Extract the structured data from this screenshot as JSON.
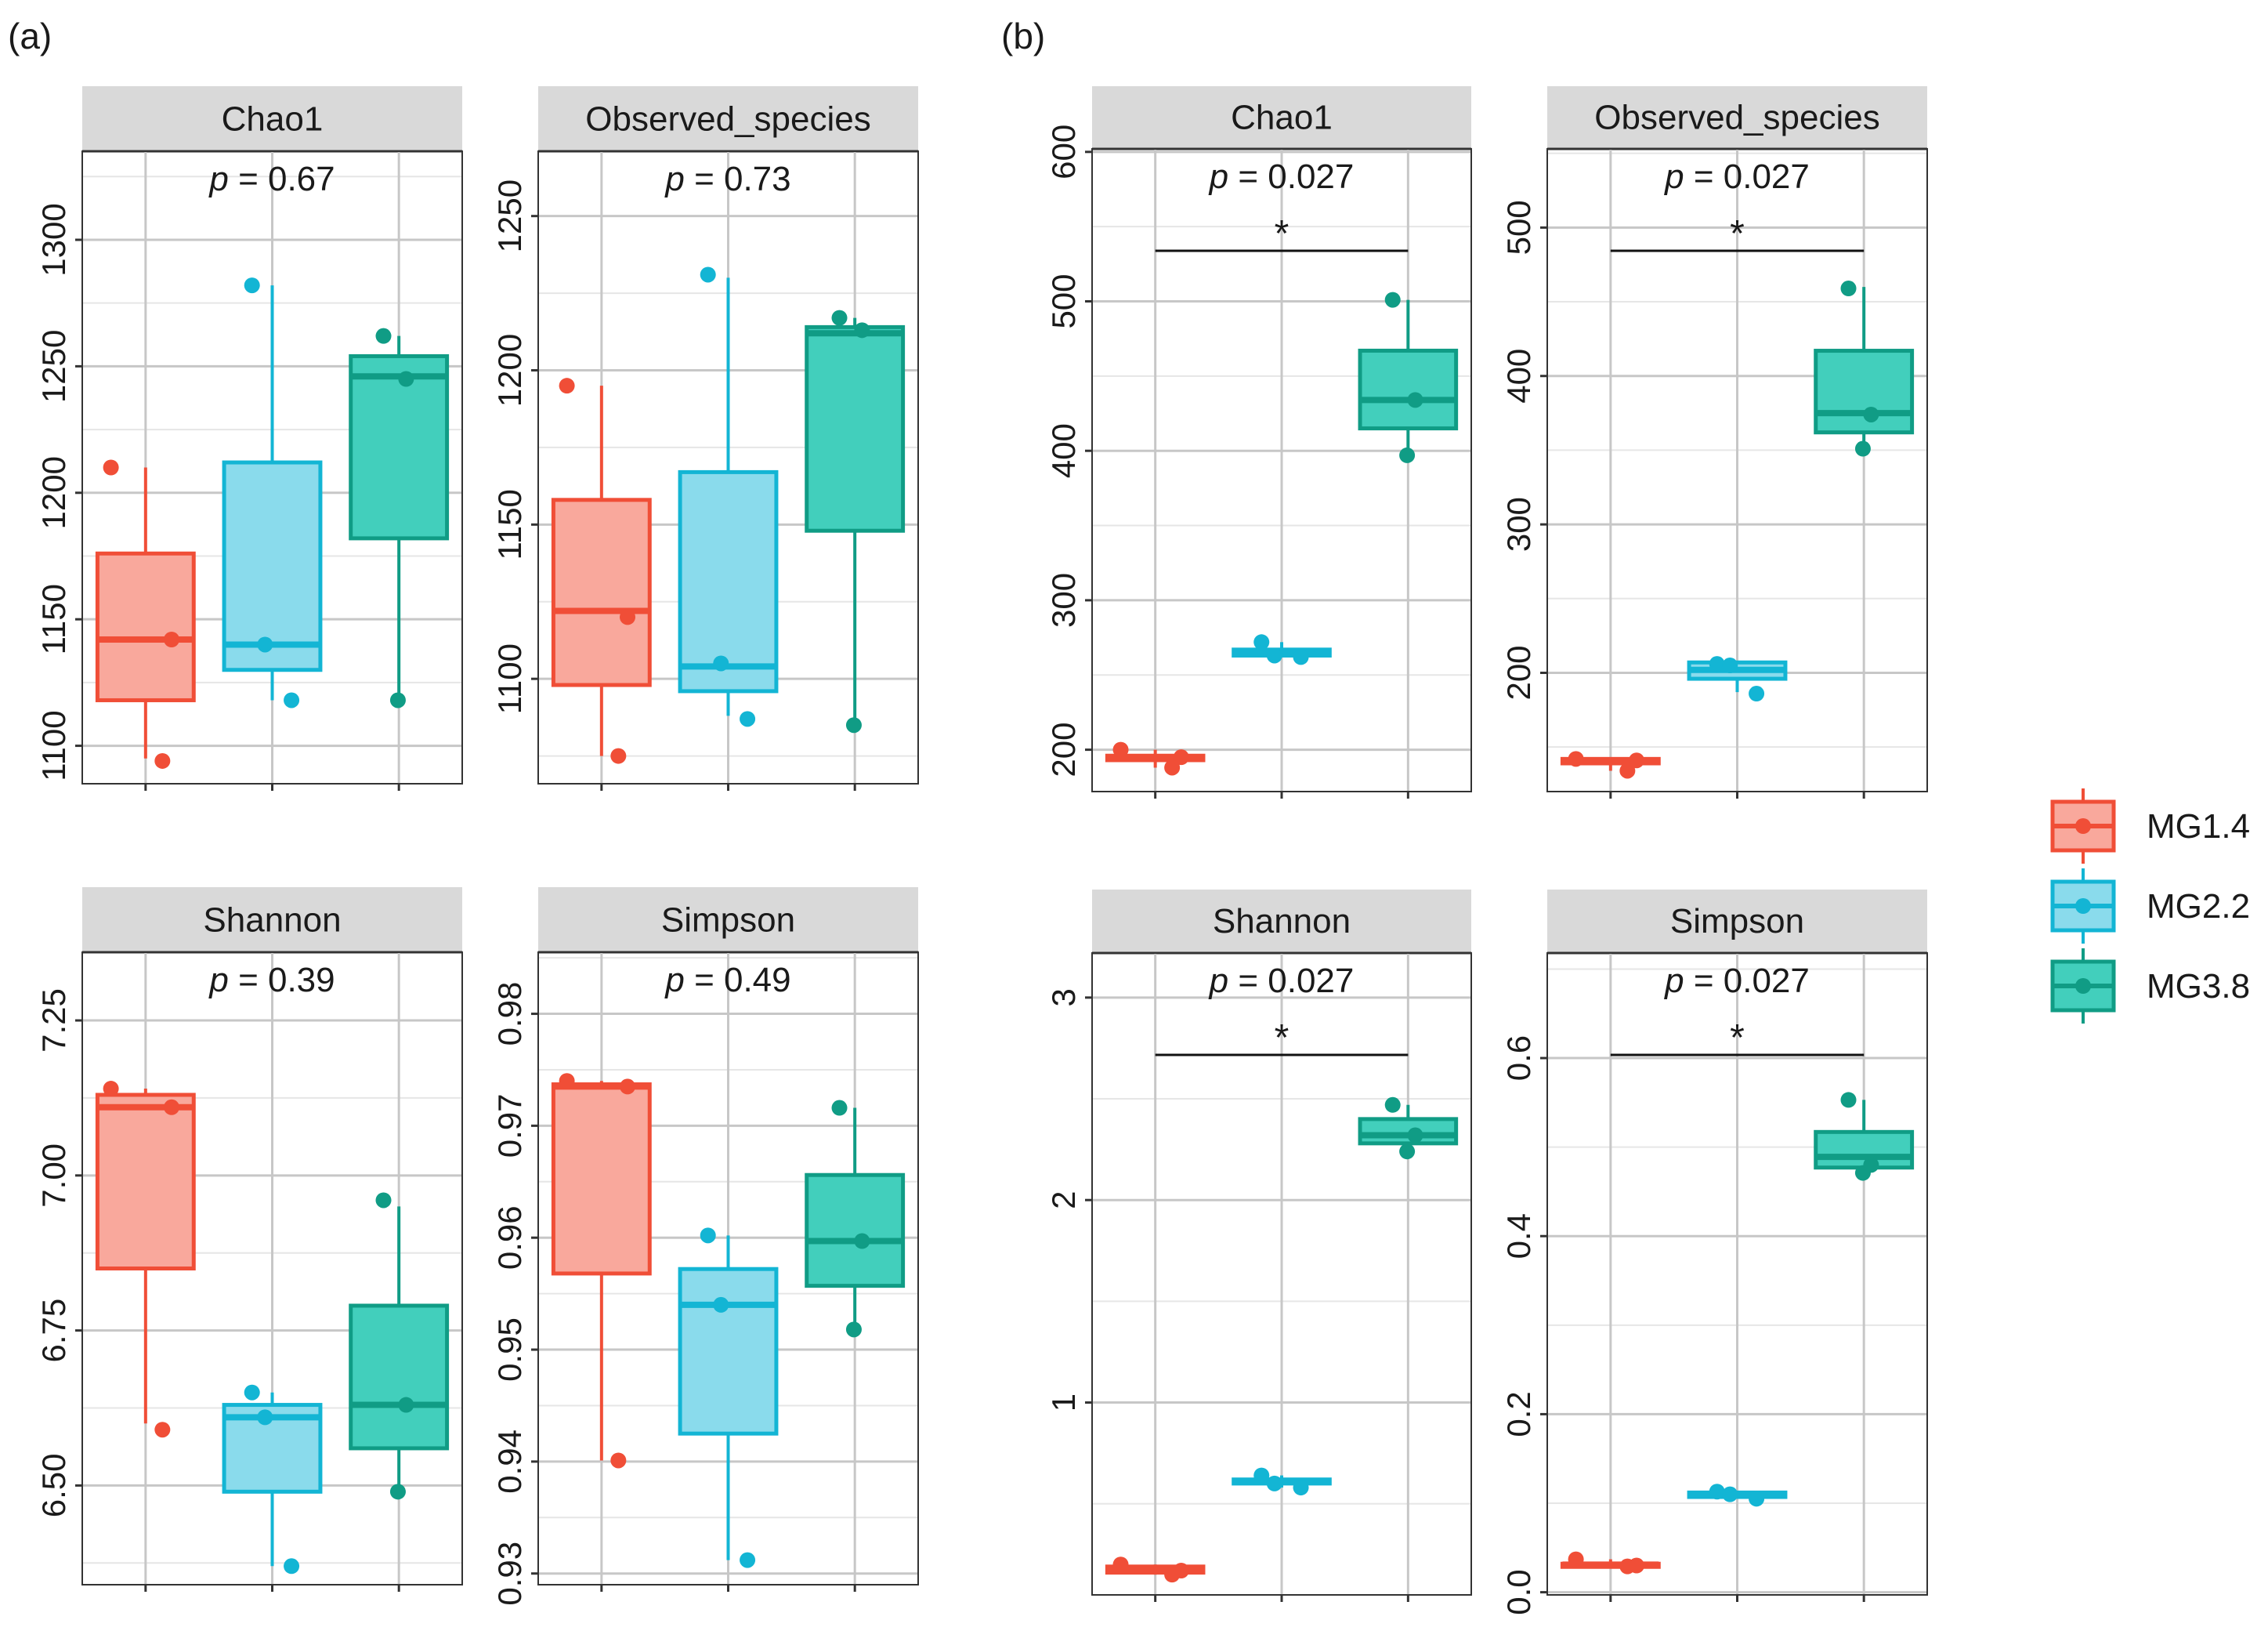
{
  "colors": {
    "MG1.4": "#F04E37",
    "MG2.2": "#13B5D4",
    "MG3.8": "#109C85",
    "MG1.4_fill": "#F9A89C",
    "MG2.2_fill": "#8ADBEC",
    "MG3.8_fill": "#42CFBC",
    "strip_bg": "#D9D9D9",
    "grid_major": "#C7C7C7",
    "grid_minor": "#E6E6E6",
    "text": "#1A1A1A"
  },
  "labels": {
    "a": "(a)",
    "b": "(b)"
  },
  "legend": {
    "items": [
      {
        "name": "MG1.4"
      },
      {
        "name": "MG2.2"
      },
      {
        "name": "MG3.8"
      }
    ]
  },
  "chart_data": [
    {
      "type": "box",
      "panel": "a",
      "title": "Chao1",
      "p_label": "p",
      "p_value": "= 0.67",
      "significance": "",
      "ylim": [
        1085,
        1335
      ],
      "yticks": [
        1100,
        1150,
        1200,
        1250,
        1300
      ],
      "ytick_labels": [
        "1100",
        "1150",
        "1200",
        "1250",
        "1300"
      ],
      "groups": [
        {
          "name": "MG1.4",
          "q1": 1118,
          "median": 1142,
          "q3": 1176,
          "whisker_low": 1095,
          "whisker_high": 1210,
          "points": [
            1210,
            1142,
            1094
          ]
        },
        {
          "name": "MG2.2",
          "q1": 1130,
          "median": 1140,
          "q3": 1212,
          "whisker_low": 1118,
          "whisker_high": 1282,
          "points": [
            1282,
            1140,
            1118
          ]
        },
        {
          "name": "MG3.8",
          "q1": 1182,
          "median": 1246,
          "q3": 1254,
          "whisker_low": 1118,
          "whisker_high": 1262,
          "points": [
            1262,
            1245,
            1118
          ]
        }
      ]
    },
    {
      "type": "box",
      "panel": "a",
      "title": "Observed_species",
      "p_label": "p",
      "p_value": "= 0.73",
      "significance": "",
      "ylim": [
        1066,
        1271
      ],
      "yticks": [
        1100,
        1150,
        1200,
        1250
      ],
      "ytick_labels": [
        "1100",
        "1150",
        "1200",
        "1250"
      ],
      "groups": [
        {
          "name": "MG1.4",
          "q1": 1098,
          "median": 1122,
          "q3": 1158,
          "whisker_low": 1075,
          "whisker_high": 1195,
          "points": [
            1195,
            1120,
            1075
          ]
        },
        {
          "name": "MG2.2",
          "q1": 1096,
          "median": 1104,
          "q3": 1167,
          "whisker_low": 1088,
          "whisker_high": 1230,
          "points": [
            1231,
            1105,
            1087
          ]
        },
        {
          "name": "MG3.8",
          "q1": 1148,
          "median": 1212,
          "q3": 1214,
          "whisker_low": 1084,
          "whisker_high": 1217,
          "points": [
            1217,
            1213,
            1085
          ]
        }
      ]
    },
    {
      "type": "box",
      "panel": "a",
      "title": "Shannon",
      "p_label": "p",
      "p_value": "= 0.39",
      "significance": "",
      "ylim": [
        6.34,
        7.36
      ],
      "yticks": [
        6.5,
        6.75,
        7.0,
        7.25
      ],
      "ytick_labels": [
        "6.50",
        "6.75",
        "7.00",
        "7.25"
      ],
      "groups": [
        {
          "name": "MG1.4",
          "q1": 6.85,
          "median": 7.11,
          "q3": 7.13,
          "whisker_low": 6.6,
          "whisker_high": 7.14,
          "points": [
            7.14,
            7.11,
            6.59
          ]
        },
        {
          "name": "MG2.2",
          "q1": 6.49,
          "median": 6.61,
          "q3": 6.63,
          "whisker_low": 6.37,
          "whisker_high": 6.65,
          "points": [
            6.65,
            6.61,
            6.37
          ]
        },
        {
          "name": "MG3.8",
          "q1": 6.56,
          "median": 6.63,
          "q3": 6.79,
          "whisker_low": 6.49,
          "whisker_high": 6.95,
          "points": [
            6.96,
            6.63,
            6.49
          ]
        }
      ]
    },
    {
      "type": "box",
      "panel": "a",
      "title": "Simpson",
      "p_label": "p",
      "p_value": "= 0.49",
      "significance": "",
      "ylim": [
        0.929,
        0.9855
      ],
      "yticks": [
        0.93,
        0.94,
        0.95,
        0.96,
        0.97,
        0.98
      ],
      "ytick_labels": [
        "0.93",
        "0.94",
        "0.95",
        "0.96",
        "0.97",
        "0.98"
      ],
      "groups": [
        {
          "name": "MG1.4",
          "q1": 0.9568,
          "median": 0.9735,
          "q3": 0.9737,
          "whisker_low": 0.9401,
          "whisker_high": 0.974,
          "points": [
            0.974,
            0.9735,
            0.9401
          ]
        },
        {
          "name": "MG2.2",
          "q1": 0.9425,
          "median": 0.954,
          "q3": 0.9572,
          "whisker_low": 0.9312,
          "whisker_high": 0.9602,
          "points": [
            0.9602,
            0.954,
            0.9312
          ]
        },
        {
          "name": "MG3.8",
          "q1": 0.9557,
          "median": 0.9597,
          "q3": 0.9656,
          "whisker_low": 0.9518,
          "whisker_high": 0.9716,
          "points": [
            0.9716,
            0.9597,
            0.9518
          ]
        }
      ]
    },
    {
      "type": "box",
      "panel": "b",
      "title": "Chao1",
      "p_label": "p",
      "p_value": "= 0.027",
      "significance": "*",
      "ylim": [
        172,
        602
      ],
      "yticks": [
        200,
        300,
        400,
        500,
        600
      ],
      "ytick_labels": [
        "200",
        "300",
        "400",
        "500",
        "600"
      ],
      "groups": [
        {
          "name": "MG1.4",
          "q1": 193,
          "median": 195,
          "q3": 196,
          "whisker_low": 188,
          "whisker_high": 200,
          "points": [
            200,
            195,
            188
          ]
        },
        {
          "name": "MG2.2",
          "q1": 263,
          "median": 264,
          "q3": 267,
          "whisker_low": 262,
          "whisker_high": 272,
          "points": [
            272,
            263,
            262
          ]
        },
        {
          "name": "MG3.8",
          "q1": 415,
          "median": 434,
          "q3": 467,
          "whisker_low": 397,
          "whisker_high": 501,
          "points": [
            501,
            434,
            397
          ]
        }
      ]
    },
    {
      "type": "box",
      "panel": "b",
      "title": "Observed_species",
      "p_label": "p",
      "p_value": "= 0.027",
      "significance": "*",
      "ylim": [
        120,
        553
      ],
      "yticks": [
        200,
        300,
        400,
        500
      ],
      "ytick_labels": [
        "200",
        "300",
        "400",
        "500"
      ],
      "groups": [
        {
          "name": "MG1.4",
          "q1": 139,
          "median": 140,
          "q3": 142,
          "whisker_low": 134,
          "whisker_high": 142,
          "points": [
            142,
            141,
            134
          ]
        },
        {
          "name": "MG2.2",
          "q1": 196,
          "median": 202,
          "q3": 207,
          "whisker_low": 187,
          "whisker_high": 207,
          "points": [
            206,
            205,
            186
          ]
        },
        {
          "name": "MG3.8",
          "q1": 362,
          "median": 375,
          "q3": 417,
          "whisker_low": 350,
          "whisker_high": 460,
          "points": [
            459,
            374,
            351
          ]
        }
      ]
    },
    {
      "type": "box",
      "panel": "b",
      "title": "Shannon",
      "p_label": "p",
      "p_value": "= 0.027",
      "significance": "*",
      "ylim": [
        0.05,
        3.22
      ],
      "yticks": [
        1,
        2,
        3
      ],
      "ytick_labels": [
        "1",
        "2",
        "3"
      ],
      "groups": [
        {
          "name": "MG1.4",
          "q1": 0.16,
          "median": 0.17,
          "q3": 0.19,
          "whisker_low": 0.15,
          "whisker_high": 0.2,
          "points": [
            0.2,
            0.17,
            0.15
          ]
        },
        {
          "name": "MG2.2",
          "q1": 0.6,
          "median": 0.61,
          "q3": 0.62,
          "whisker_low": 0.58,
          "whisker_high": 0.64,
          "points": [
            0.64,
            0.6,
            0.58
          ]
        },
        {
          "name": "MG3.8",
          "q1": 2.28,
          "median": 2.32,
          "q3": 2.4,
          "whisker_low": 2.24,
          "whisker_high": 2.47,
          "points": [
            2.47,
            2.32,
            2.24
          ]
        }
      ]
    },
    {
      "type": "box",
      "panel": "b",
      "title": "Simpson",
      "p_label": "p",
      "p_value": "= 0.027",
      "significance": "*",
      "ylim": [
        -0.003,
        0.718
      ],
      "yticks": [
        0.0,
        0.2,
        0.4,
        0.6
      ],
      "ytick_labels": [
        "0.0",
        "0.2",
        "0.4",
        "0.6"
      ],
      "groups": [
        {
          "name": "MG1.4",
          "q1": 0.029,
          "median": 0.031,
          "q3": 0.032,
          "whisker_low": 0.028,
          "whisker_high": 0.037,
          "points": [
            0.037,
            0.03,
            0.029
          ]
        },
        {
          "name": "MG2.2",
          "q1": 0.107,
          "median": 0.11,
          "q3": 0.112,
          "whisker_low": 0.105,
          "whisker_high": 0.114,
          "points": [
            0.113,
            0.11,
            0.105
          ]
        },
        {
          "name": "MG3.8",
          "q1": 0.477,
          "median": 0.489,
          "q3": 0.517,
          "whisker_low": 0.471,
          "whisker_high": 0.553,
          "points": [
            0.553,
            0.48,
            0.471
          ]
        }
      ]
    }
  ]
}
